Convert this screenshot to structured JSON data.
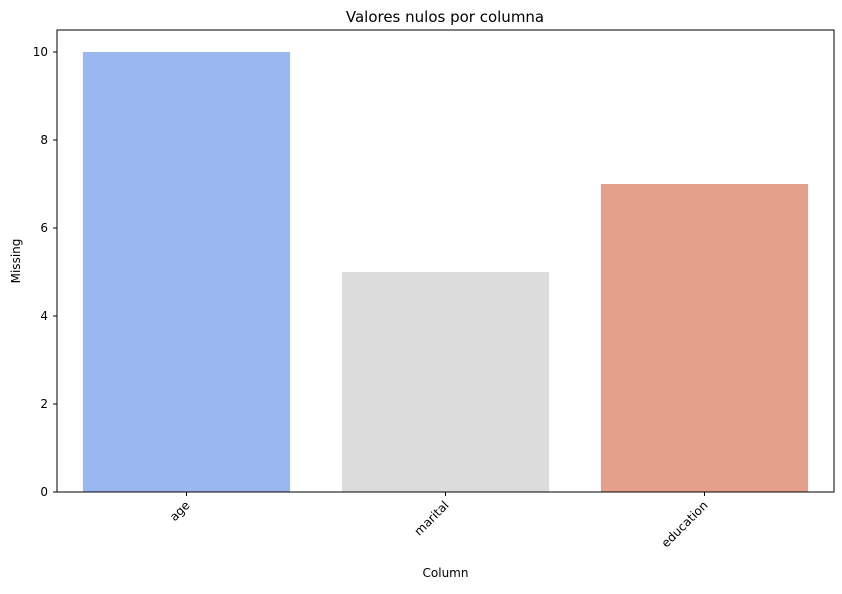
{
  "chart_data": {
    "type": "bar",
    "title": "Valores nulos por columna",
    "xlabel": "Column",
    "ylabel": "Missing",
    "categories": [
      "age",
      "marital",
      "education"
    ],
    "values": [
      10,
      5,
      7
    ],
    "colors": [
      "#9ab7f1",
      "#dcdcdc",
      "#e4a08a"
    ],
    "ylim": [
      0,
      10.5
    ],
    "yticks": [
      0,
      2,
      4,
      6,
      8,
      10
    ],
    "grid": false,
    "legend": false
  }
}
